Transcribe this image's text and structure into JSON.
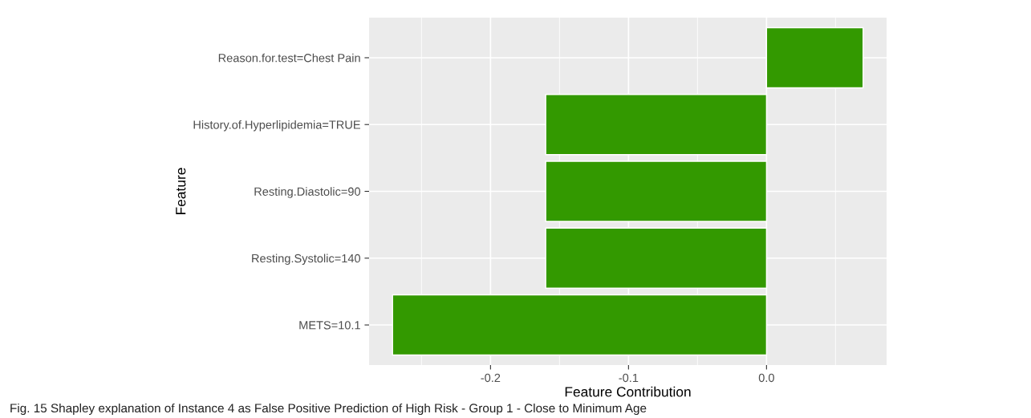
{
  "chart_data": {
    "type": "bar",
    "orientation": "horizontal",
    "xlabel": "Feature Contribution",
    "ylabel": "Feature",
    "categories": [
      "Reason.for.test=Chest Pain",
      "History.of.Hyperlipidemia=TRUE",
      "Resting.Diastolic=90",
      "Resting.Systolic=140",
      "METS=10.1"
    ],
    "values": [
      0.07,
      -0.16,
      -0.16,
      -0.16,
      -0.271
    ],
    "color": "#339900",
    "xlim": [
      -0.288,
      0.087
    ],
    "xticks": [
      {
        "value": -0.2,
        "label": "-0.2"
      },
      {
        "value": -0.1,
        "label": "-0.1"
      },
      {
        "value": 0.0,
        "label": "0.0"
      }
    ],
    "grid": true,
    "annotations": [
      "Fig. 15 Shapley explanation of Instance 4 as False Positive Prediction of High Risk - Group 1 - Close to Minimum Age"
    ]
  }
}
